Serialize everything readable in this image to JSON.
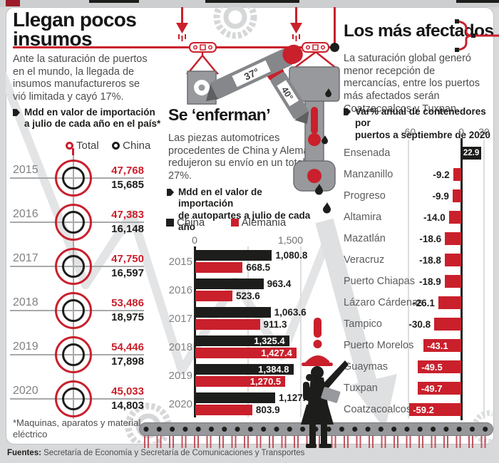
{
  "colors": {
    "red": "#c9202c",
    "black": "#1d1d1b",
    "gray_illustration": "#97999c"
  },
  "page": {
    "footer_label": "Fuentes:",
    "footer_text": " Secretaría de Economía y Secretaría de Comunicaciones y Transportes"
  },
  "left": {
    "title": "Llegan pocos\ninsumos",
    "intro": "Ante la saturación de puertos en el mundo, la llegada de insumos manufactureros se vió limitada y cayó 17%.",
    "note": "Mdd en valor de importación\na julio de cada año en el  país*",
    "legend": [
      {
        "label": "Total"
      },
      {
        "label": "China"
      }
    ],
    "rows": [
      {
        "year": "2015",
        "total": "47,768",
        "china": "15,685"
      },
      {
        "year": "2016",
        "total": "47,383",
        "china": "16,148"
      },
      {
        "year": "2017",
        "total": "47,750",
        "china": "16,597"
      },
      {
        "year": "2018",
        "total": "53,486",
        "china": "18,975"
      },
      {
        "year": "2019",
        "total": "54,446",
        "china": "17,898"
      },
      {
        "year": "2020",
        "total": "45,033",
        "china": "14,803"
      }
    ],
    "footnote": "*Maquinas, aparatos y material eléctrico"
  },
  "middle": {
    "title": "Se ‘enferman’",
    "intro": "Las piezas automotrices procedentes de China y Alemania redujeron su envío en un total de 27%.",
    "note": "Mdd en el valor de importación\nde autopartes a julio de cada año",
    "legend": [
      {
        "label": "China"
      },
      {
        "label": "Alemania"
      }
    ],
    "axis": {
      "min": "0",
      "max": "1,500"
    },
    "illustration": {
      "thermometers": [
        "37°",
        "40°"
      ]
    },
    "rows": [
      {
        "year": "2015",
        "china": "1,080.8",
        "alemania": "668.5"
      },
      {
        "year": "2016",
        "china": "963.4",
        "alemania": "523.6"
      },
      {
        "year": "2017",
        "china": "1,063.6",
        "alemania": "911.3"
      },
      {
        "year": "2018",
        "china": "1,325.4",
        "alemania": "1,427.4"
      },
      {
        "year": "2019",
        "china": "1,384.8",
        "alemania": "1,270.5"
      },
      {
        "year": "2020",
        "china": "1,127.6",
        "alemania": "803.9"
      }
    ]
  },
  "right": {
    "title": "Los más afectados",
    "intro": "La saturación global generó menor recepción de mercancías, entre los puertos más afectados serán Coatzacoalcos y Tuxpan.",
    "note": "Var% anual de contenedores por\npuertos a septiembre de 2020",
    "axis": {
      "ticks": [
        "-60",
        "0",
        "30"
      ]
    },
    "rows": [
      {
        "name": "Ensenada",
        "label": "22.9"
      },
      {
        "name": "Manzanillo",
        "label": "-9.2"
      },
      {
        "name": "Progreso",
        "label": "-9.9"
      },
      {
        "name": "Altamira",
        "label": "-14.0"
      },
      {
        "name": "Mazatlán",
        "label": "-18.6"
      },
      {
        "name": "Veracruz",
        "label": "-18.8"
      },
      {
        "name": "Puerto Chiapas",
        "label": "-18.9"
      },
      {
        "name": "Lázaro Cárdenas",
        "label": "-26.1"
      },
      {
        "name": "Tampico",
        "label": "-30.8"
      },
      {
        "name": "Puerto Morelos",
        "label": "-43.1"
      },
      {
        "name": "Guaymas",
        "label": "-49.5"
      },
      {
        "name": "Tuxpan",
        "label": "-49.7"
      },
      {
        "name": "Coatzacoalcos",
        "label": "-59.2"
      }
    ]
  },
  "chart_data": [
    {
      "type": "table",
      "title": "Mdd en valor de importación a julio de cada año en el país*",
      "categories": [
        "2015",
        "2016",
        "2017",
        "2018",
        "2019",
        "2020"
      ],
      "series": [
        {
          "name": "Total",
          "color": "#c9202c",
          "values": [
            47768,
            47383,
            47750,
            53486,
            54446,
            45033
          ]
        },
        {
          "name": "China",
          "color": "#1d1d1b",
          "values": [
            15685,
            16148,
            16597,
            18975,
            17898,
            14803
          ]
        }
      ]
    },
    {
      "type": "bar",
      "orientation": "horizontal",
      "title": "Mdd en el valor de importación de autopartes a julio de cada año",
      "categories": [
        "2015",
        "2016",
        "2017",
        "2018",
        "2019",
        "2020"
      ],
      "series": [
        {
          "name": "China",
          "color": "#1d1d1b",
          "values": [
            1080.8,
            963.4,
            1063.6,
            1325.4,
            1384.8,
            1127.6
          ]
        },
        {
          "name": "Alemania",
          "color": "#c9202c",
          "values": [
            668.5,
            523.6,
            911.3,
            1427.4,
            1270.5,
            803.9
          ]
        }
      ],
      "xlim": [
        0,
        1500
      ],
      "tick_labels": [
        "0",
        "1,500"
      ],
      "grid": true,
      "legend_position": "top"
    },
    {
      "type": "bar",
      "orientation": "horizontal",
      "title": "Var% anual de contenedores por puertos a septiembre de 2020",
      "categories": [
        "Ensenada",
        "Manzanillo",
        "Progreso",
        "Altamira",
        "Mazatlán",
        "Veracruz",
        "Puerto Chiapas",
        "Lázaro Cárdenas",
        "Tampico",
        "Puerto Morelos",
        "Guaymas",
        "Tuxpan",
        "Coatzacoalcos"
      ],
      "values": [
        22.9,
        -9.2,
        -9.9,
        -14.0,
        -18.6,
        -18.8,
        -18.9,
        -26.1,
        -30.8,
        -43.1,
        -49.5,
        -49.7,
        -59.2
      ],
      "positive_color": "#1d1d1b",
      "negative_color": "#c9202c",
      "xlim": [
        -60,
        30
      ],
      "tick_labels": [
        "-60",
        "0",
        "30"
      ],
      "grid": true
    }
  ]
}
